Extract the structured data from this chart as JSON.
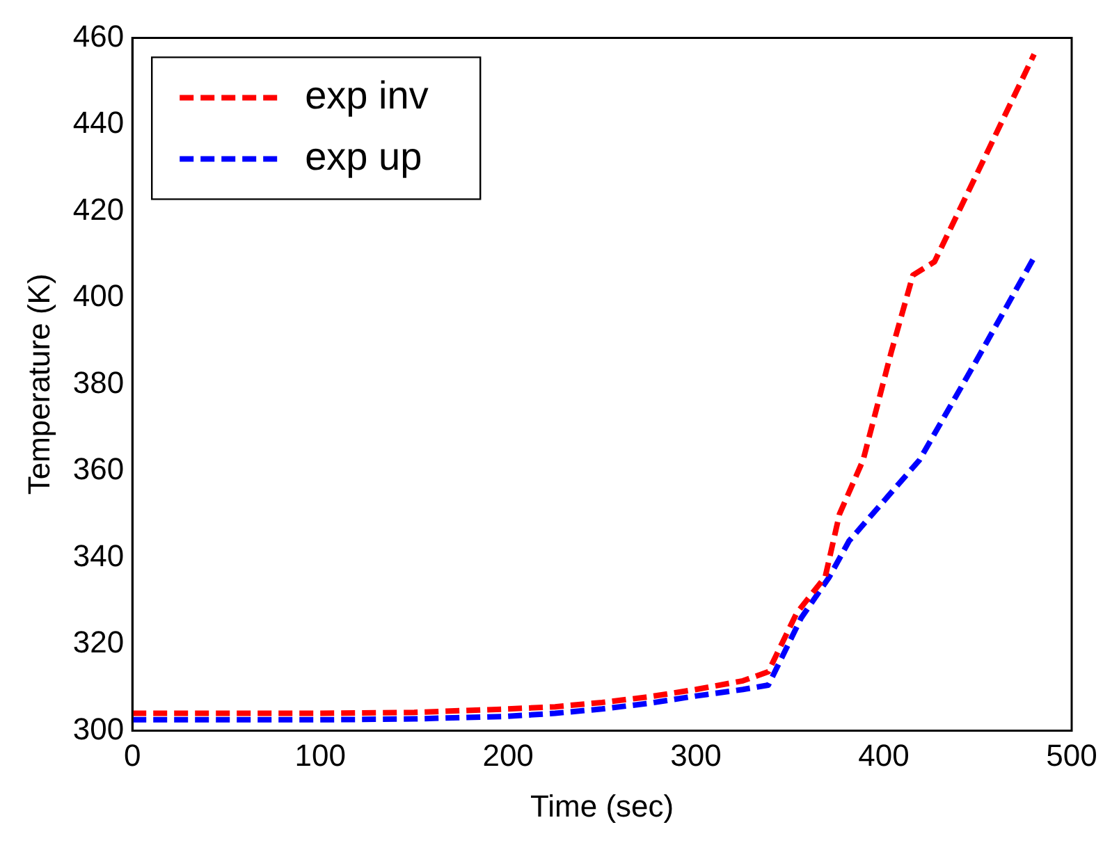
{
  "chart_data": {
    "type": "line",
    "xlabel": "Time (sec)",
    "ylabel": "Temperature (K)",
    "xlim": [
      0,
      500
    ],
    "xticks": [
      0,
      100,
      200,
      300,
      400,
      500
    ],
    "ylim": [
      300,
      460
    ],
    "yticks": [
      300,
      320,
      340,
      360,
      380,
      400,
      420,
      440,
      460
    ],
    "grid": false,
    "legend": "top left",
    "line_style": "dashed",
    "marker": "none",
    "series": [
      {
        "name": "exp inv",
        "color": "#ff0000",
        "x": [
          0,
          50,
          100,
          150,
          200,
          225,
          250,
          275,
          300,
          325,
          338.5,
          353.7,
          368.8,
          376.4,
          389,
          404,
          415.5,
          427,
          450,
          480
        ],
        "values": [
          304,
          304,
          304,
          304.2,
          305,
          305.5,
          306.5,
          307.8,
          309.5,
          311.5,
          313.6,
          327.2,
          335.5,
          350,
          362.5,
          387.5,
          405.2,
          408.3,
          429,
          456.2
        ]
      },
      {
        "name": "exp up",
        "color": "#0000ff",
        "x": [
          0,
          50,
          100,
          150,
          200,
          225,
          250,
          275,
          300,
          325,
          338.5,
          356,
          371,
          381.5,
          419,
          450,
          480
        ],
        "values": [
          302.5,
          302.5,
          302.5,
          302.7,
          303.3,
          304,
          305,
          306.3,
          308,
          309.5,
          310.5,
          326,
          335.5,
          343.8,
          362.5,
          386,
          409.3
        ]
      }
    ]
  }
}
